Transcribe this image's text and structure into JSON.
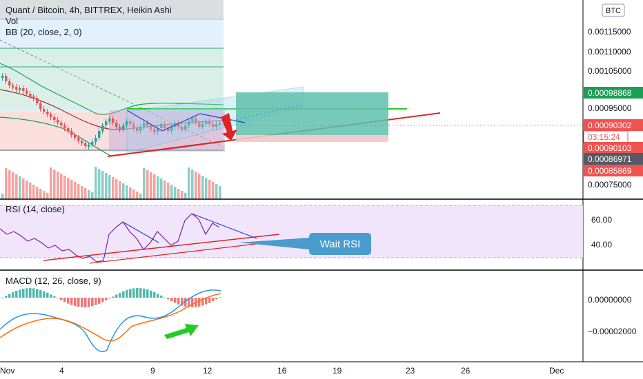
{
  "header": {
    "symbol_title": "Quant / Bitcoin, 4h, BITTREX, Heikin Ashi",
    "vol_label": "Vol",
    "bb_label": "BB (20, close, 2, 0)",
    "currency_badge": "BTC"
  },
  "price_axis": {
    "ticks": [
      "0.00115000",
      "0.00110000",
      "0.00105000",
      "0.00095000",
      "0.00075000"
    ],
    "tags": {
      "upper_bb": "0.00098868",
      "last_price": "0.00090302",
      "countdown": "03:15:24",
      "lower_level": "0.00090103",
      "crosshair": "0.00086971",
      "lowest": "0.00085869"
    }
  },
  "rsi": {
    "label": "RSI (14, close)",
    "ticks": [
      "60.00",
      "40.00"
    ],
    "callout": "Wait RSI"
  },
  "macd": {
    "label": "MACD (12, 26, close, 9)",
    "ticks": [
      "0.00000000",
      "−0.00002000"
    ]
  },
  "time_axis": {
    "ticks": [
      "Nov",
      "4",
      "9",
      "12",
      "16",
      "19",
      "23",
      "26",
      "Dec"
    ]
  },
  "colors": {
    "up": "#26a69a",
    "down": "#ef5350",
    "bb_line": "#1b9e55",
    "trend_red": "#e02424",
    "trend_green": "#22cc22",
    "long_target": "#5fbfae",
    "rsi_line": "#7b1fa2",
    "macd_line": "#2196f3",
    "signal_line": "#ff6d00",
    "callout": "#4a9ccf"
  },
  "chart_data": {
    "type": "candlestick",
    "price_ticks": [
      0.00115,
      0.0011,
      0.00105,
      0.00095,
      0.00075
    ],
    "last_price": 0.00090302,
    "rsi_ticks": [
      60,
      40
    ],
    "macd_ticks": [
      0.0,
      -2e-05
    ]
  }
}
